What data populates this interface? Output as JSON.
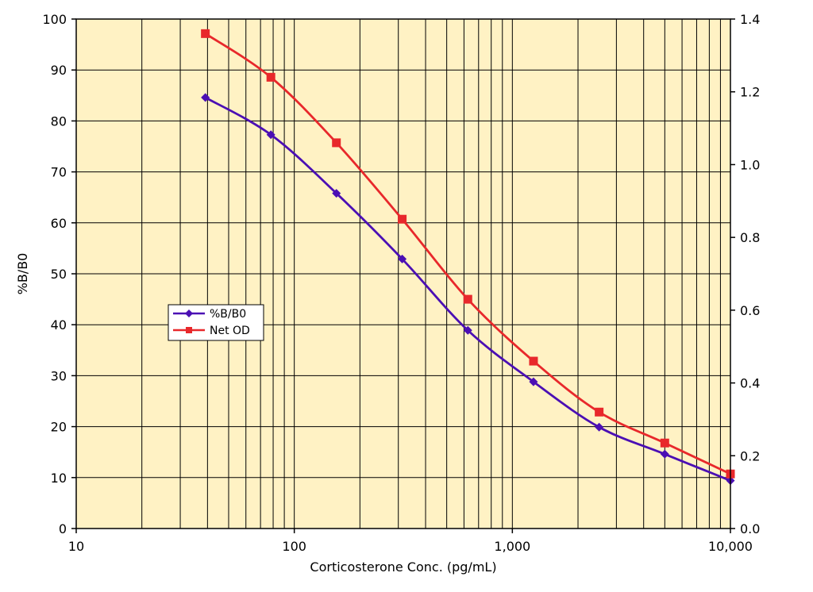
{
  "chart_data": {
    "type": "line",
    "title": "",
    "xlabel": "Corticosterone Conc. (pg/mL)",
    "ylabel": "%B/B0",
    "y2label": "",
    "x_scale": "log",
    "xlim": [
      10,
      10000
    ],
    "ylim": [
      0,
      100
    ],
    "y2lim": [
      0,
      1.4
    ],
    "grid": true,
    "plot_background": "#FFF2C4",
    "x_tick_labels": [
      "10",
      "100",
      "1,000",
      "10,000"
    ],
    "x_tick_values": [
      10,
      100,
      1000,
      10000
    ],
    "y_tick_labels": [
      "0",
      "10",
      "20",
      "30",
      "40",
      "50",
      "60",
      "70",
      "80",
      "90",
      "100"
    ],
    "y2_tick_labels": [
      "0.0",
      "0.2",
      "0.4",
      "0.6",
      "0.8",
      "1.0",
      "1.2",
      "1.4"
    ],
    "legend_position": "left-middle",
    "series": [
      {
        "name": "%B/B0",
        "axis": "left",
        "color": "#4B0FB4",
        "marker": "diamond",
        "x": [
          39.1,
          78.1,
          156,
          312.5,
          625,
          1250,
          2500,
          5000,
          10000
        ],
        "y": [
          84.6,
          77.3,
          65.8,
          52.9,
          38.9,
          28.8,
          19.9,
          14.6,
          9.4
        ]
      },
      {
        "name": "Net OD",
        "axis": "right",
        "color": "#E8282B",
        "marker": "square",
        "x": [
          39.1,
          78.1,
          156,
          312.5,
          625,
          1250,
          2500,
          5000,
          10000
        ],
        "y": [
          1.36,
          1.24,
          1.06,
          0.85,
          0.63,
          0.46,
          0.32,
          0.235,
          0.15
        ]
      }
    ]
  }
}
